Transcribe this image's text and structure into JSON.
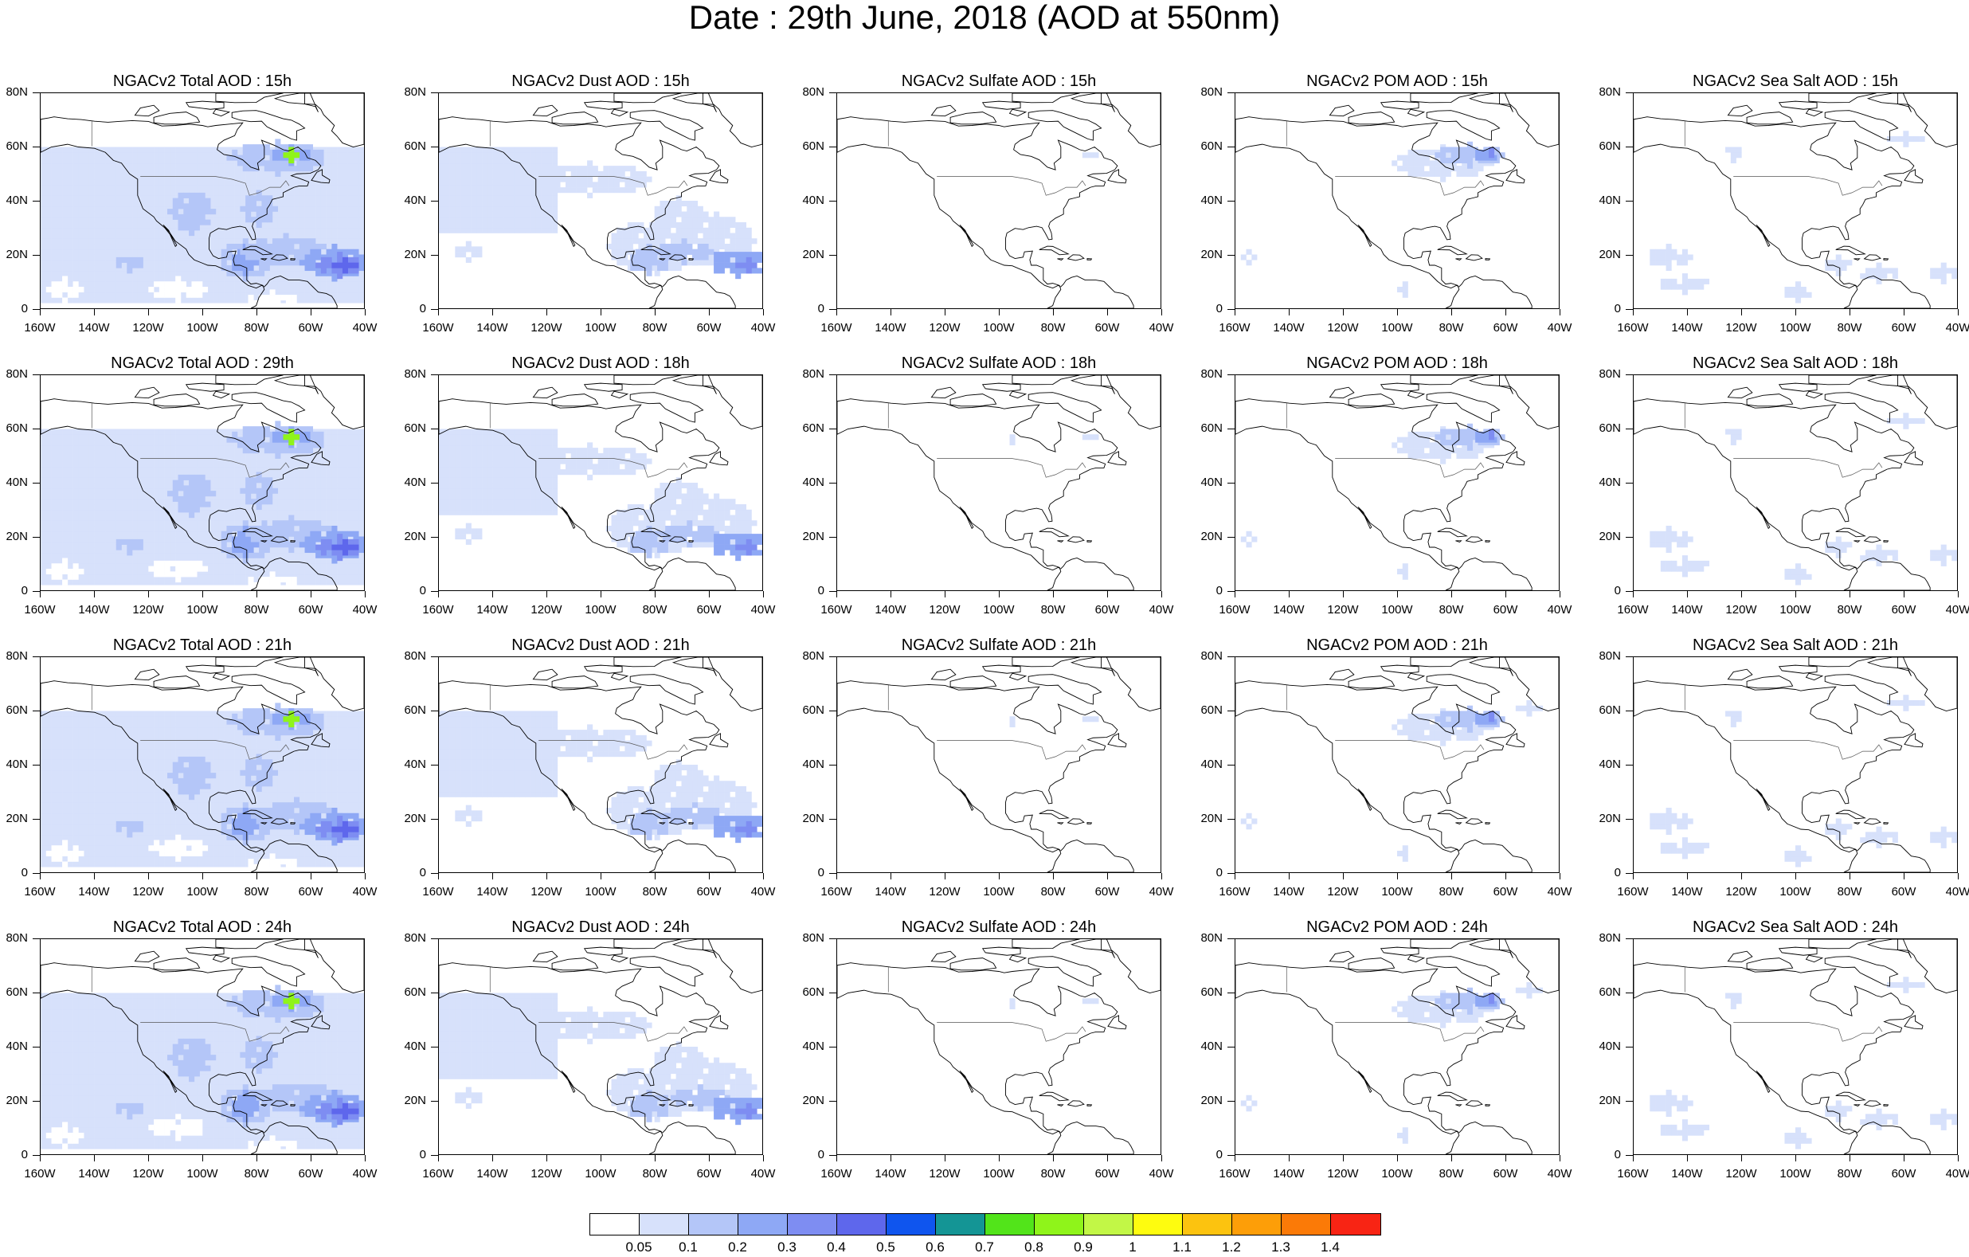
{
  "title": "Date : 29th June, 2018 (AOD at 550nm)",
  "panels": [
    {
      "title": "NGACv2 Total AOD : 15h",
      "field": "total"
    },
    {
      "title": "NGACv2 Dust AOD : 15h",
      "field": "dust"
    },
    {
      "title": "NGACv2 Sulfate AOD : 15h",
      "field": "sulfate"
    },
    {
      "title": "NGACv2 POM AOD : 15h",
      "field": "pom"
    },
    {
      "title": "NGACv2 Sea Salt AOD : 15h",
      "field": "seasalt"
    },
    {
      "title": "NGACv2 Total AOD : 29th",
      "field": "total"
    },
    {
      "title": "NGACv2 Dust AOD : 18h",
      "field": "dust"
    },
    {
      "title": "NGACv2 Sulfate AOD : 18h",
      "field": "sulfate"
    },
    {
      "title": "NGACv2 POM AOD : 18h",
      "field": "pom"
    },
    {
      "title": "NGACv2 Sea Salt AOD : 18h",
      "field": "seasalt"
    },
    {
      "title": "NGACv2 Total AOD : 21h",
      "field": "total"
    },
    {
      "title": "NGACv2 Dust AOD : 21h",
      "field": "dust"
    },
    {
      "title": "NGACv2 Sulfate AOD : 21h",
      "field": "sulfate"
    },
    {
      "title": "NGACv2 POM AOD : 21h",
      "field": "pom"
    },
    {
      "title": "NGACv2 Sea Salt AOD : 21h",
      "field": "seasalt"
    },
    {
      "title": "NGACv2 Total AOD : 24h",
      "field": "total"
    },
    {
      "title": "NGACv2 Dust AOD : 24h",
      "field": "dust"
    },
    {
      "title": "NGACv2 Sulfate AOD : 24h",
      "field": "sulfate"
    },
    {
      "title": "NGACv2 POM AOD : 24h",
      "field": "pom"
    },
    {
      "title": "NGACv2 Sea Salt  AOD : 24h",
      "field": "seasalt"
    }
  ],
  "axes": {
    "lat_labels": [
      "80N",
      "60N",
      "40N",
      "20N",
      "0"
    ],
    "lon_labels": [
      "160W",
      "140W",
      "120W",
      "100W",
      "80W",
      "60W",
      "40W"
    ]
  },
  "colorbar": {
    "colors": [
      "#ffffff",
      "#d7e1fb",
      "#b4c6f8",
      "#8ea8f5",
      "#7e8df2",
      "#5e67ec",
      "#0f55ee",
      "#149595",
      "#52e41a",
      "#8ff41a",
      "#c2f746",
      "#fefc0f",
      "#fcc30f",
      "#fd9e08",
      "#fb7a07",
      "#f82414"
    ],
    "labels": [
      "0.05",
      "0.1",
      "0.2",
      "0.3",
      "0.4",
      "0.5",
      "0.6",
      "0.7",
      "0.8",
      "0.9",
      "1",
      "1.1",
      "1.2",
      "1.3",
      "1.4"
    ]
  },
  "map_data": {
    "lon_range": [
      -160,
      -40
    ],
    "lat_range": [
      0,
      80
    ]
  }
}
